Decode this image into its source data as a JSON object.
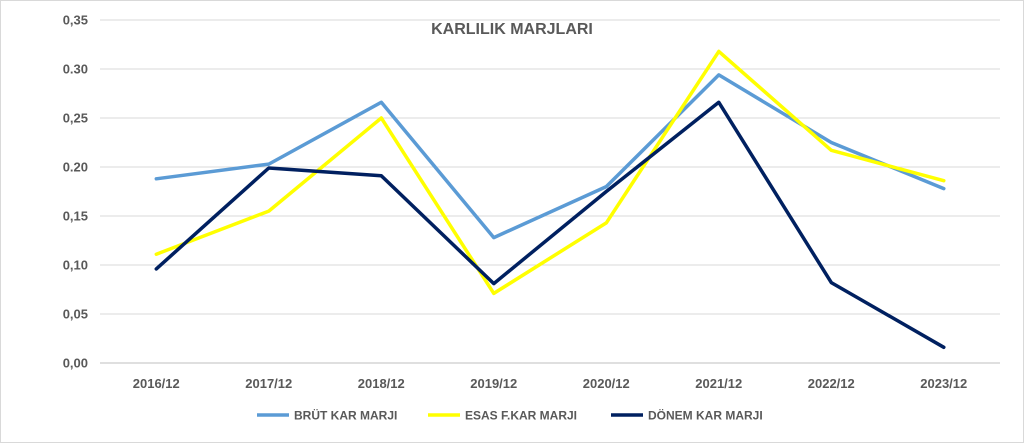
{
  "chart_data": {
    "type": "line",
    "title": "KARLILIK MARJLARI",
    "categories": [
      "2016/12",
      "2017/12",
      "2018/12",
      "2019/12",
      "2020/12",
      "2021/12",
      "2022/12",
      "2023/12"
    ],
    "y_ticks": [
      "0,00",
      "0,05",
      "0,10",
      "0,15",
      "0.20",
      "0,25",
      "0.30",
      "0,35"
    ],
    "ylim": [
      0,
      0.35
    ],
    "grid": true,
    "legend_position": "bottom",
    "series": [
      {
        "name": "BRÜT KAR MARJI",
        "color": "#5b9bd5",
        "values": [
          0.188,
          0.203,
          0.266,
          0.128,
          0.18,
          0.294,
          0.225,
          0.178
        ]
      },
      {
        "name": "ESAS F.KAR MARJI",
        "color": "#ffff00",
        "values": [
          0.111,
          0.155,
          0.25,
          0.071,
          0.143,
          0.318,
          0.217,
          0.186
        ]
      },
      {
        "name": "DÖNEM KAR MARJI",
        "color": "#002060",
        "values": [
          0.096,
          0.199,
          0.191,
          0.081,
          0.175,
          0.266,
          0.082,
          0.016
        ]
      }
    ]
  }
}
